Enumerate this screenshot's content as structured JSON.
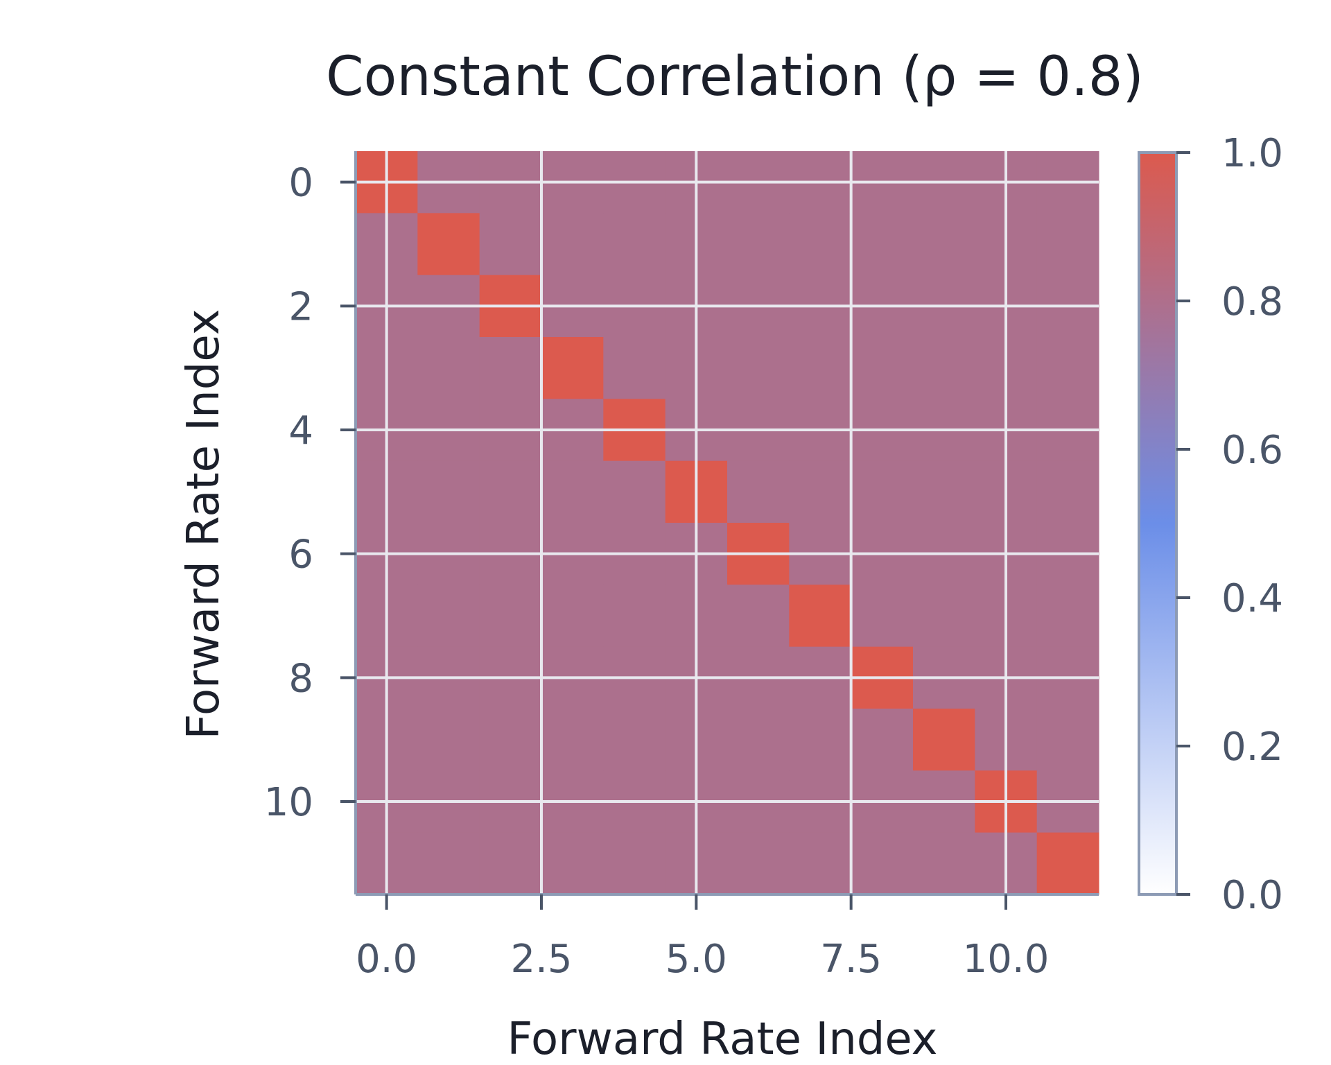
{
  "chart_data": {
    "type": "heatmap",
    "title": "Constant Correlation (ρ = 0.8)",
    "xlabel": "Forward Rate Index",
    "ylabel": "Forward Rate Index",
    "n": 12,
    "rho": 0.8,
    "diagonal_value": 1.0,
    "x_ticks": [
      "0.0",
      "2.5",
      "5.0",
      "7.5",
      "10.0"
    ],
    "x_tick_values": [
      0,
      2.5,
      5,
      7.5,
      10
    ],
    "y_ticks": [
      "0",
      "2",
      "4",
      "6",
      "8",
      "10"
    ],
    "y_tick_values": [
      0,
      2,
      4,
      6,
      8,
      10
    ],
    "xlim": [
      -0.5,
      11.5
    ],
    "ylim": [
      11.5,
      -0.5
    ],
    "grid": true,
    "colorbar": {
      "range": [
        0.0,
        1.0
      ],
      "ticks": [
        "0.0",
        "0.2",
        "0.4",
        "0.6",
        "0.8",
        "1.0"
      ],
      "tick_values": [
        0.0,
        0.2,
        0.4,
        0.6,
        0.8,
        1.0
      ],
      "colors": [
        "#ffffff",
        "#6b8ee8",
        "#dc5a4e"
      ]
    },
    "colors": {
      "off_diagonal": "#ac708d",
      "diagonal": "#dc5a4e",
      "grid": "#e8e8ee",
      "spine": "#8d9bb5"
    }
  }
}
